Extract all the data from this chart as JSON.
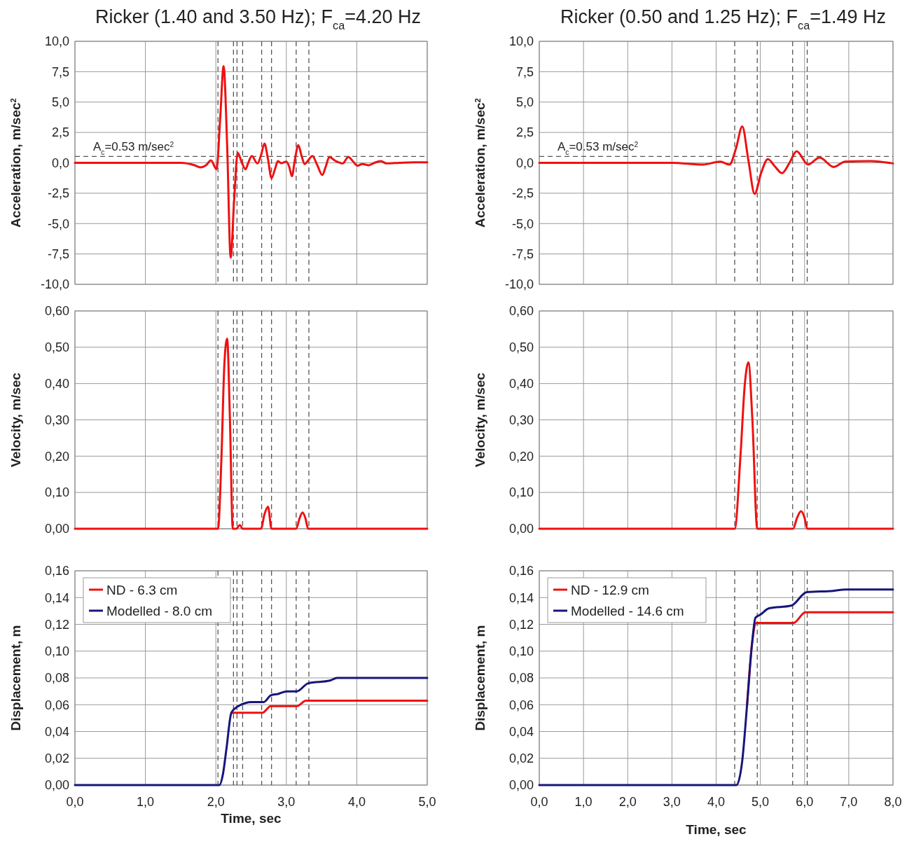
{
  "chart_data": [
    {
      "type": "line",
      "title": "Ricker (1.40 and 3.50 Hz); F$_{ca}$=4.20 Hz",
      "ylabel": "Acceleration, m/sec$^{2}$",
      "xlim": [
        0,
        5
      ],
      "xticks": [
        {
          "value": 0,
          "label": null
        },
        {
          "value": 1,
          "label": null
        },
        {
          "value": 2,
          "label": null
        },
        {
          "value": 3,
          "label": null
        },
        {
          "value": 4,
          "label": null
        },
        {
          "value": 5,
          "label": null
        }
      ],
      "ylim": [
        -10,
        10
      ],
      "yticks": [
        {
          "value": -10,
          "label": "-10,0"
        },
        {
          "value": -7.5,
          "label": "-7,5"
        },
        {
          "value": -5,
          "label": "-5,0"
        },
        {
          "value": -2.5,
          "label": "-2,5"
        },
        {
          "value": 0,
          "label": "0,0"
        },
        {
          "value": 2.5,
          "label": "2,5"
        },
        {
          "value": 5,
          "label": "5,0"
        },
        {
          "value": 7.5,
          "label": "7,5"
        },
        {
          "value": 10,
          "label": "10,0"
        }
      ],
      "tick_labels": "y",
      "grid": true,
      "series": [
        {
          "color": "#ee1111",
          "x": [
            0,
            1.5,
            1.7,
            1.78,
            1.86,
            1.93,
            2.01,
            2.06,
            2.11,
            2.16,
            2.21,
            2.26,
            2.31,
            2.37,
            2.42,
            2.46,
            2.51,
            2.59,
            2.64,
            2.69,
            2.74,
            2.79,
            2.84,
            2.88,
            2.93,
            3.0,
            3.04,
            3.08,
            3.12,
            3.17,
            3.22,
            3.26,
            3.31,
            3.37,
            3.44,
            3.51,
            3.56,
            3.61,
            3.7,
            3.8,
            3.88,
            3.95,
            4.01,
            4.08,
            4.17,
            4.25,
            4.34,
            4.42,
            4.6,
            4.8,
            5.0
          ],
          "values": [
            0,
            0,
            -0.2,
            -0.37,
            -0.2,
            0.2,
            -0.53,
            3.5,
            7.95,
            1.5,
            -7.8,
            -3.0,
            0.82,
            0.0,
            -0.53,
            0.0,
            0.56,
            -0.05,
            0.6,
            1.58,
            0.3,
            -1.26,
            -0.5,
            0.14,
            -0.03,
            0.1,
            -0.3,
            -1.1,
            0.2,
            1.45,
            0.5,
            -0.1,
            0.2,
            0.56,
            -0.2,
            -1.0,
            -0.3,
            0.47,
            0.15,
            -0.05,
            0.47,
            0.1,
            -0.24,
            -0.1,
            -0.2,
            0.0,
            0.15,
            -0.05,
            0.0,
            0.05,
            0.05
          ]
        }
      ],
      "ref_lines": [
        {
          "axis": "y",
          "value": 0.53,
          "label": "A$_{c}$=0.53 m/sec$^{2}$",
          "color": "#555555",
          "line_style": "dashed"
        },
        {
          "axis": "x",
          "value": 2.03,
          "color": "#555555",
          "line_style": "dashed"
        },
        {
          "axis": "x",
          "value": 2.25,
          "color": "#555555",
          "line_style": "dashed"
        },
        {
          "axis": "x",
          "value": 2.3,
          "color": "#555555",
          "line_style": "dashed"
        },
        {
          "axis": "x",
          "value": 2.38,
          "color": "#555555",
          "line_style": "dashed"
        },
        {
          "axis": "x",
          "value": 2.65,
          "color": "#555555",
          "line_style": "dashed"
        },
        {
          "axis": "x",
          "value": 2.79,
          "color": "#555555",
          "line_style": "dashed"
        },
        {
          "axis": "x",
          "value": 3.14,
          "color": "#555555",
          "line_style": "dashed"
        },
        {
          "axis": "x",
          "value": 3.32,
          "color": "#555555",
          "line_style": "dashed"
        }
      ]
    },
    {
      "type": "line",
      "title": "Ricker (0.50 and 1.25 Hz); F$_{ca}$=1.49 Hz",
      "ylabel": "Acceleration, m/sec$^{2}$",
      "xlim": [
        0,
        8
      ],
      "xticks": [
        {
          "value": 0,
          "label": null
        },
        {
          "value": 1,
          "label": null
        },
        {
          "value": 2,
          "label": null
        },
        {
          "value": 3,
          "label": null
        },
        {
          "value": 4,
          "label": null
        },
        {
          "value": 5,
          "label": null
        },
        {
          "value": 6,
          "label": null
        },
        {
          "value": 7,
          "label": null
        },
        {
          "value": 8,
          "label": null
        }
      ],
      "ylim": [
        -10,
        10
      ],
      "yticks": [
        {
          "value": -10,
          "label": "-10,0"
        },
        {
          "value": -7.5,
          "label": "-7,5"
        },
        {
          "value": -5,
          "label": "-5,0"
        },
        {
          "value": -2.5,
          "label": "-2,5"
        },
        {
          "value": 0,
          "label": "0,0"
        },
        {
          "value": 2.5,
          "label": "2,5"
        },
        {
          "value": 5,
          "label": "5,0"
        },
        {
          "value": 7.5,
          "label": "7,5"
        },
        {
          "value": 10,
          "label": "10,0"
        }
      ],
      "tick_labels": "y",
      "grid": true,
      "series": [
        {
          "color": "#ee1111",
          "x": [
            0,
            3.0,
            3.7,
            4.09,
            4.3,
            4.45,
            4.59,
            4.73,
            4.87,
            5.02,
            5.17,
            5.33,
            5.49,
            5.66,
            5.82,
            6.08,
            6.34,
            6.66,
            6.92,
            7.5,
            8.0
          ],
          "values": [
            0,
            0,
            -0.14,
            0.1,
            -0.15,
            1.2,
            2.99,
            0.2,
            -2.55,
            -0.8,
            0.3,
            -0.3,
            -0.85,
            0.0,
            0.95,
            -0.14,
            0.43,
            -0.34,
            0.1,
            0.15,
            -0.05
          ]
        }
      ],
      "ref_lines": [
        {
          "axis": "y",
          "value": 0.53,
          "label": "A$_{c}$=0.53 m/sec$^{2}$",
          "color": "#555555",
          "line_style": "dashed"
        },
        {
          "axis": "x",
          "value": 4.42,
          "color": "#555555",
          "line_style": "dashed"
        },
        {
          "axis": "x",
          "value": 4.93,
          "color": "#555555",
          "line_style": "dashed"
        },
        {
          "axis": "x",
          "value": 5.73,
          "color": "#555555",
          "line_style": "dashed"
        },
        {
          "axis": "x",
          "value": 6.06,
          "color": "#555555",
          "line_style": "dashed"
        }
      ]
    },
    {
      "type": "line",
      "ylabel": "Velocity, m/sec",
      "xlim": [
        0,
        5
      ],
      "xticks": [
        {
          "value": 0,
          "label": null
        },
        {
          "value": 1,
          "label": null
        },
        {
          "value": 2,
          "label": null
        },
        {
          "value": 3,
          "label": null
        },
        {
          "value": 4,
          "label": null
        },
        {
          "value": 5,
          "label": null
        }
      ],
      "ylim": [
        0,
        0.6
      ],
      "yticks": [
        {
          "value": 0,
          "label": "0,00"
        },
        {
          "value": 0.1,
          "label": "0,10"
        },
        {
          "value": 0.2,
          "label": "0,20"
        },
        {
          "value": 0.3,
          "label": "0,30"
        },
        {
          "value": 0.4,
          "label": "0,40"
        },
        {
          "value": 0.5,
          "label": "0,50"
        },
        {
          "value": 0.6,
          "label": "0,60"
        }
      ],
      "tick_labels": "y",
      "grid": true,
      "series": [
        {
          "color": "#ee1111",
          "x": [
            0,
            2.03,
            2.08,
            2.12,
            2.16,
            2.2,
            2.24,
            2.29,
            2.34,
            2.38,
            2.64,
            2.69,
            2.74,
            2.79,
            3.14,
            3.19,
            3.23,
            3.27,
            3.31,
            5.0
          ],
          "values": [
            0,
            0,
            0.2,
            0.45,
            0.524,
            0.3,
            0,
            0,
            0.01,
            0,
            0,
            0.04,
            0.061,
            0,
            0,
            0.03,
            0.045,
            0.03,
            0,
            0
          ]
        }
      ],
      "ref_lines": [
        {
          "axis": "x",
          "value": 2.03,
          "color": "#555555",
          "line_style": "dashed"
        },
        {
          "axis": "x",
          "value": 2.25,
          "color": "#555555",
          "line_style": "dashed"
        },
        {
          "axis": "x",
          "value": 2.3,
          "color": "#555555",
          "line_style": "dashed"
        },
        {
          "axis": "x",
          "value": 2.38,
          "color": "#555555",
          "line_style": "dashed"
        },
        {
          "axis": "x",
          "value": 2.65,
          "color": "#555555",
          "line_style": "dashed"
        },
        {
          "axis": "x",
          "value": 2.79,
          "color": "#555555",
          "line_style": "dashed"
        },
        {
          "axis": "x",
          "value": 3.14,
          "color": "#555555",
          "line_style": "dashed"
        },
        {
          "axis": "x",
          "value": 3.32,
          "color": "#555555",
          "line_style": "dashed"
        }
      ]
    },
    {
      "type": "line",
      "ylabel": "Velocity, m/sec",
      "xlim": [
        0,
        8
      ],
      "xticks": [
        {
          "value": 0,
          "label": null
        },
        {
          "value": 1,
          "label": null
        },
        {
          "value": 2,
          "label": null
        },
        {
          "value": 3,
          "label": null
        },
        {
          "value": 4,
          "label": null
        },
        {
          "value": 5,
          "label": null
        },
        {
          "value": 6,
          "label": null
        },
        {
          "value": 7,
          "label": null
        },
        {
          "value": 8,
          "label": null
        }
      ],
      "ylim": [
        0,
        0.6
      ],
      "yticks": [
        {
          "value": 0,
          "label": "0,00"
        },
        {
          "value": 0.1,
          "label": "0,10"
        },
        {
          "value": 0.2,
          "label": "0,20"
        },
        {
          "value": 0.3,
          "label": "0,30"
        },
        {
          "value": 0.4,
          "label": "0,40"
        },
        {
          "value": 0.5,
          "label": "0,50"
        },
        {
          "value": 0.6,
          "label": "0,60"
        }
      ],
      "tick_labels": "y",
      "grid": true,
      "series": [
        {
          "color": "#ee1111",
          "x": [
            0,
            4.42,
            4.55,
            4.65,
            4.73,
            4.82,
            4.93,
            5.74,
            5.83,
            5.92,
            6.0,
            6.06,
            8.0
          ],
          "values": [
            0,
            0,
            0.2,
            0.4,
            0.458,
            0.3,
            0,
            0,
            0.03,
            0.048,
            0.03,
            0,
            0
          ]
        }
      ],
      "ref_lines": [
        {
          "axis": "x",
          "value": 4.42,
          "color": "#555555",
          "line_style": "dashed"
        },
        {
          "axis": "x",
          "value": 4.93,
          "color": "#555555",
          "line_style": "dashed"
        },
        {
          "axis": "x",
          "value": 5.73,
          "color": "#555555",
          "line_style": "dashed"
        },
        {
          "axis": "x",
          "value": 6.06,
          "color": "#555555",
          "line_style": "dashed"
        }
      ]
    },
    {
      "type": "line",
      "ylabel": "Displacement, m",
      "xlabel": "Time, sec",
      "xlim": [
        0,
        5
      ],
      "xticks": [
        {
          "value": 0,
          "label": "0,0"
        },
        {
          "value": 1,
          "label": "1,0"
        },
        {
          "value": 2,
          "label": "2,0"
        },
        {
          "value": 3,
          "label": "3,0"
        },
        {
          "value": 4,
          "label": "4,0"
        },
        {
          "value": 5,
          "label": "5,0"
        }
      ],
      "ylim": [
        0,
        0.16
      ],
      "yticks": [
        {
          "value": 0,
          "label": "0,00"
        },
        {
          "value": 0.02,
          "label": "0,02"
        },
        {
          "value": 0.04,
          "label": "0,04"
        },
        {
          "value": 0.06,
          "label": "0,06"
        },
        {
          "value": 0.08,
          "label": "0,08"
        },
        {
          "value": 0.1,
          "label": "0,10"
        },
        {
          "value": 0.12,
          "label": "0,12"
        },
        {
          "value": 0.14,
          "label": "0,14"
        },
        {
          "value": 0.16,
          "label": "0,16"
        }
      ],
      "grid": true,
      "legend": "top left",
      "series": [
        {
          "name": "ND - 6.3 cm",
          "color": "#ee1111",
          "x": [
            2.22,
            2.66,
            2.78,
            3.15,
            3.28,
            5.0
          ],
          "values": [
            0.054,
            0.054,
            0.059,
            0.059,
            0.063,
            0.063
          ]
        },
        {
          "name": "Modelled - 8.0 cm",
          "color": "#16167a",
          "x": [
            0,
            2.05,
            2.1,
            2.15,
            2.22,
            2.32,
            2.51,
            2.68,
            2.78,
            2.88,
            3.01,
            3.15,
            3.31,
            3.62,
            3.72,
            5.0
          ],
          "values": [
            0,
            0,
            0.008,
            0.027,
            0.054,
            0.059,
            0.062,
            0.062,
            0.067,
            0.068,
            0.07,
            0.07,
            0.076,
            0.078,
            0.08,
            0.08
          ]
        }
      ],
      "ref_lines": [
        {
          "axis": "x",
          "value": 2.03,
          "color": "#555555",
          "line_style": "dashed"
        },
        {
          "axis": "x",
          "value": 2.25,
          "color": "#555555",
          "line_style": "dashed"
        },
        {
          "axis": "x",
          "value": 2.3,
          "color": "#555555",
          "line_style": "dashed"
        },
        {
          "axis": "x",
          "value": 2.38,
          "color": "#555555",
          "line_style": "dashed"
        },
        {
          "axis": "x",
          "value": 2.65,
          "color": "#555555",
          "line_style": "dashed"
        },
        {
          "axis": "x",
          "value": 2.79,
          "color": "#555555",
          "line_style": "dashed"
        },
        {
          "axis": "x",
          "value": 3.14,
          "color": "#555555",
          "line_style": "dashed"
        },
        {
          "axis": "x",
          "value": 3.32,
          "color": "#555555",
          "line_style": "dashed"
        }
      ]
    },
    {
      "type": "line",
      "ylabel": "Displacement, m",
      "xlabel": "Time, sec",
      "xlim": [
        0,
        8
      ],
      "xticks": [
        {
          "value": 0,
          "label": "0,0"
        },
        {
          "value": 1,
          "label": "1,0"
        },
        {
          "value": 2,
          "label": "2,0"
        },
        {
          "value": 3,
          "label": "3,0"
        },
        {
          "value": 4,
          "label": "4,0"
        },
        {
          "value": 5,
          "label": "5,0"
        },
        {
          "value": 6,
          "label": "6,0"
        },
        {
          "value": 7,
          "label": "7,0"
        },
        {
          "value": 8,
          "label": "8,0"
        }
      ],
      "ylim": [
        0,
        0.16
      ],
      "yticks": [
        {
          "value": 0,
          "label": "0,00"
        },
        {
          "value": 0.02,
          "label": "0,02"
        },
        {
          "value": 0.04,
          "label": "0,04"
        },
        {
          "value": 0.06,
          "label": "0,06"
        },
        {
          "value": 0.08,
          "label": "0,08"
        },
        {
          "value": 0.1,
          "label": "0,10"
        },
        {
          "value": 0.12,
          "label": "0,12"
        },
        {
          "value": 0.14,
          "label": "0,14"
        },
        {
          "value": 0.16,
          "label": "0,16"
        }
      ],
      "grid": true,
      "legend": "top left",
      "series": [
        {
          "name": "ND - 12.9 cm",
          "color": "#ee1111",
          "x": [
            4.7,
            4.81,
            4.91,
            5.75,
            6.02,
            8.0
          ],
          "values": [
            0.06,
            0.105,
            0.121,
            0.121,
            0.129,
            0.129
          ]
        },
        {
          "name": "Modelled - 14.6 cm",
          "color": "#16167a",
          "x": [
            0,
            4.46,
            4.59,
            4.7,
            4.81,
            4.89,
            4.99,
            5.2,
            5.7,
            6.05,
            6.65,
            6.94,
            8.0
          ],
          "values": [
            0,
            0,
            0.018,
            0.06,
            0.105,
            0.125,
            0.127,
            0.132,
            0.134,
            0.144,
            0.145,
            0.146,
            0.146
          ]
        }
      ],
      "ref_lines": [
        {
          "axis": "x",
          "value": 4.42,
          "color": "#555555",
          "line_style": "dashed"
        },
        {
          "axis": "x",
          "value": 4.93,
          "color": "#555555",
          "line_style": "dashed"
        },
        {
          "axis": "x",
          "value": 5.73,
          "color": "#555555",
          "line_style": "dashed"
        },
        {
          "axis": "x",
          "value": 6.06,
          "color": "#555555",
          "line_style": "dashed"
        }
      ]
    }
  ]
}
